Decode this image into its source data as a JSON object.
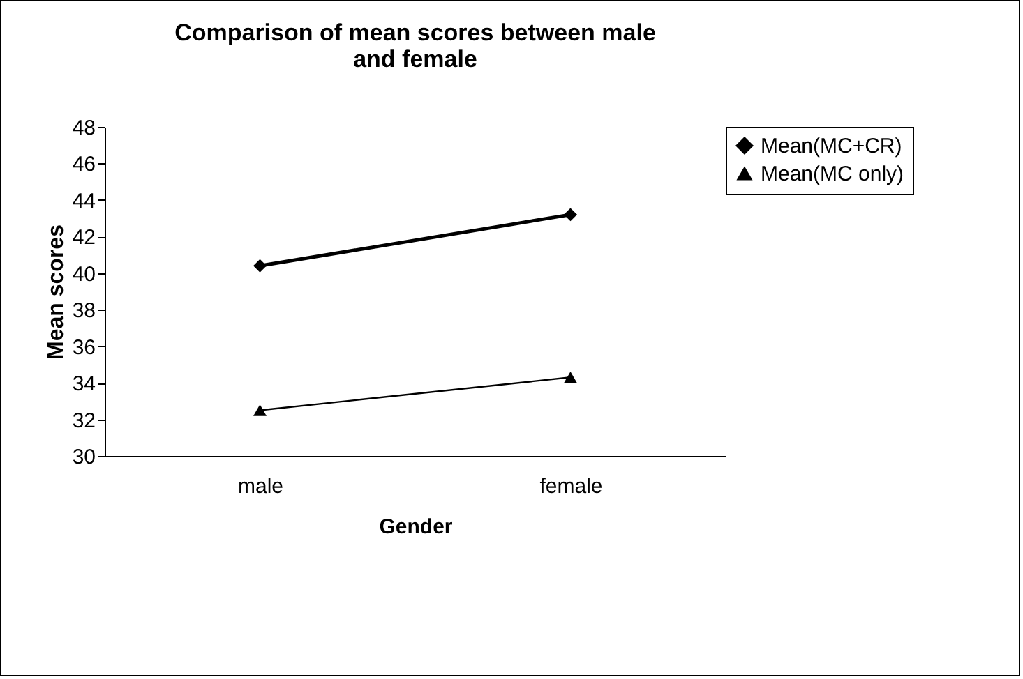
{
  "chart_data": {
    "type": "line",
    "title": [
      "Comparison of mean scores between male",
      "and female"
    ],
    "xlabel": "Gender",
    "ylabel": "Mean scores",
    "categories": [
      "male",
      "female"
    ],
    "series": [
      {
        "name": "Mean(MC+CR)",
        "color": "#000000",
        "marker": "diamond",
        "values": [
          40.4,
          43.2
        ]
      },
      {
        "name": "Mean(MC only)",
        "color": "#000000",
        "marker": "triangle",
        "values": [
          32.5,
          34.3
        ]
      }
    ],
    "ylim": [
      30,
      48
    ],
    "yticks": [
      30,
      32,
      34,
      36,
      38,
      40,
      42,
      44,
      46,
      48
    ],
    "grid": false,
    "legend": "right",
    "line_style": "solid"
  }
}
